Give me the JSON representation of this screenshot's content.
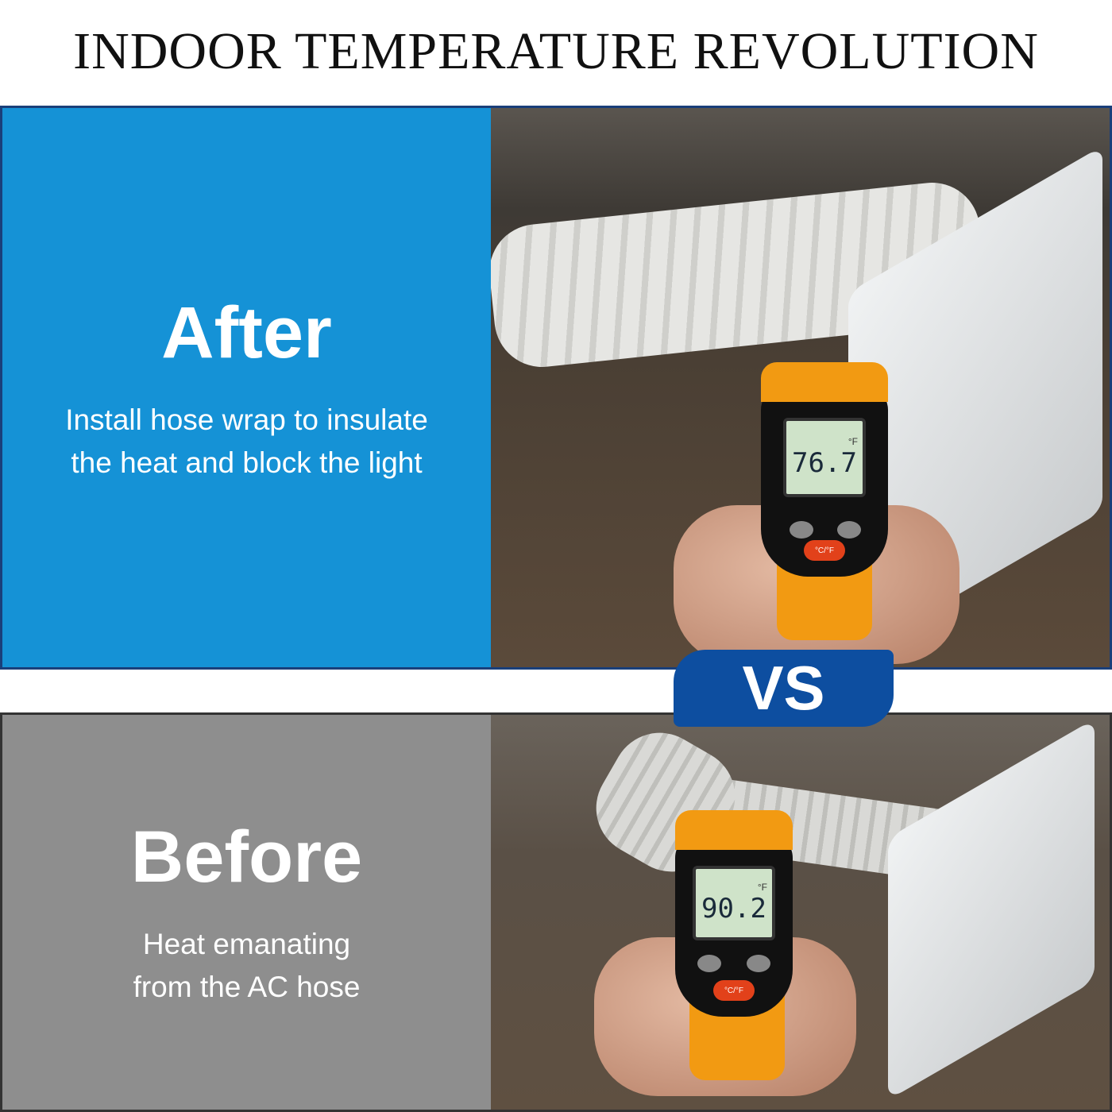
{
  "title": "INDOOR TEMPERATURE REVOLUTION",
  "after": {
    "heading": "After",
    "line1": "Install hose wrap to insulate",
    "line2": "the heat and block the light",
    "reading": "76.7",
    "unit": "°F",
    "button": "°C/°F",
    "panel_color": "#1592d6"
  },
  "badge": {
    "label": "VS",
    "color": "#0d4ea0"
  },
  "before": {
    "heading": "Before",
    "line1": "Heat emanating",
    "line2": "from the AC hose",
    "reading": "90.2",
    "unit": "°F",
    "button": "°C/°F",
    "panel_color": "#8e8e8e"
  }
}
